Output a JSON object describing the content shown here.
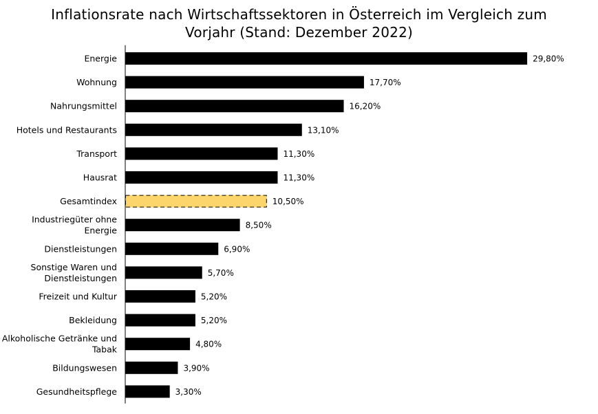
{
  "chart_data": {
    "type": "bar",
    "orientation": "horizontal",
    "title_lines": [
      "Inflationsrate nach Wirtschaftssektoren in Österreich im Vergleich zum",
      "Vorjahr (Stand: Dezember 2022)"
    ],
    "xlabel": "",
    "ylabel": "",
    "xlim": [
      0,
      30
    ],
    "grid": false,
    "legend": "none",
    "colors": {
      "default": "#000000",
      "highlight": "#FCD56C",
      "highlight_border": "#000000"
    },
    "bars": [
      {
        "category": [
          "Energie"
        ],
        "value": 29.8,
        "label": "29,80%"
      },
      {
        "category": [
          "Wohnung"
        ],
        "value": 17.7,
        "label": "17,70%"
      },
      {
        "category": [
          "Nahrungsmittel"
        ],
        "value": 16.2,
        "label": "16,20%"
      },
      {
        "category": [
          "Hotels und Restaurants"
        ],
        "value": 13.1,
        "label": "13,10%"
      },
      {
        "category": [
          "Transport"
        ],
        "value": 11.3,
        "label": "11,30%"
      },
      {
        "category": [
          "Hausrat"
        ],
        "value": 11.3,
        "label": "11,30%"
      },
      {
        "category": [
          "Gesamtindex"
        ],
        "value": 10.5,
        "label": "10,50%",
        "highlight": true
      },
      {
        "category": [
          "Industriegüter ohne",
          "Energie"
        ],
        "value": 8.5,
        "label": "8,50%"
      },
      {
        "category": [
          "Dienstleistungen"
        ],
        "value": 6.9,
        "label": "6,90%"
      },
      {
        "category": [
          "Sonstige Waren und",
          "Dienstleistungen"
        ],
        "value": 5.7,
        "label": "5,70%"
      },
      {
        "category": [
          "Freizeit und Kultur"
        ],
        "value": 5.2,
        "label": "5,20%"
      },
      {
        "category": [
          "Bekleidung"
        ],
        "value": 5.2,
        "label": "5,20%"
      },
      {
        "category": [
          "Alkoholische Getränke und",
          "Tabak"
        ],
        "value": 4.8,
        "label": "4,80%"
      },
      {
        "category": [
          "Bildungswesen"
        ],
        "value": 3.9,
        "label": "3,90%"
      },
      {
        "category": [
          "Gesundheitspflege"
        ],
        "value": 3.3,
        "label": "3,30%"
      }
    ]
  }
}
